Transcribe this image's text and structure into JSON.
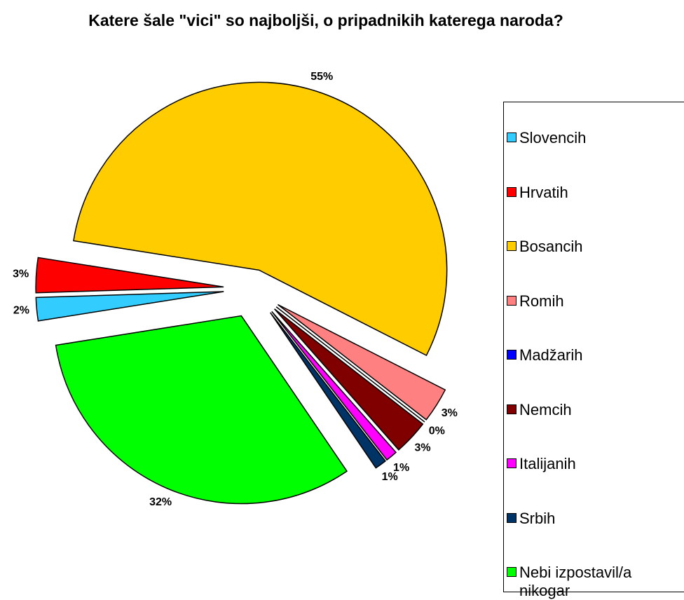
{
  "chart_data": {
    "type": "pie",
    "title": "Katere šale \"vici\" so najboljši, o pripadnikih katerega naroda?",
    "categories": [
      "Slovencih",
      "Hrvatih",
      "Bosancih",
      "Romih",
      "Madžarih",
      "Nemcih",
      "Italijanih",
      "Srbih",
      "Nebi izpostavil/a nikogar"
    ],
    "values": [
      2,
      3,
      55,
      3,
      0,
      3,
      1,
      1,
      32
    ],
    "value_labels": [
      "2%",
      "3%",
      "55%",
      "3%",
      "0%",
      "3%",
      "1%",
      "1%",
      "32%"
    ],
    "colors": [
      "#33ccff",
      "#ff0000",
      "#ffcc00",
      "#ff8080",
      "#0000ff",
      "#800000",
      "#ff00ff",
      "#003366",
      "#00ff00"
    ],
    "legend": "right"
  }
}
